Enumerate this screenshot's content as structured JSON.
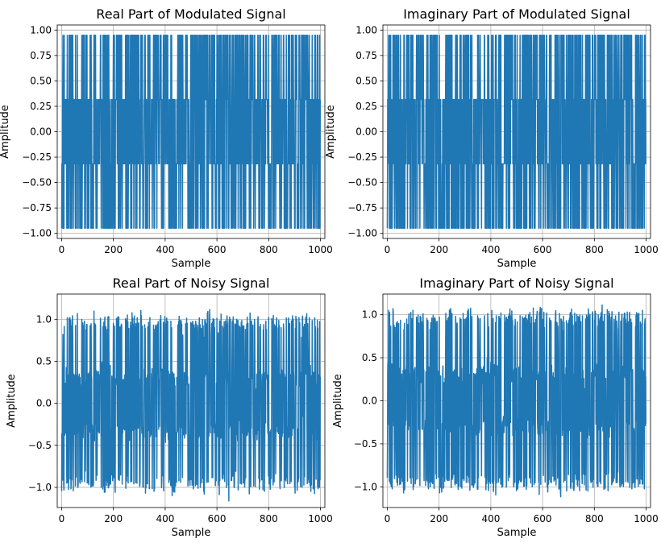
{
  "chart_data": [
    {
      "type": "line",
      "title": "Real Part of Modulated Signal",
      "xlabel": "Sample",
      "ylabel": "Amplitude",
      "xlim": [
        -17,
        1017
      ],
      "ylim": [
        -1.05,
        1.05
      ],
      "xticks": [
        0,
        200,
        400,
        600,
        800,
        1000
      ],
      "yticks": [
        -1.0,
        -0.75,
        -0.5,
        -0.25,
        0.0,
        0.25,
        0.5,
        0.75,
        1.0
      ],
      "ytick_labels": [
        "−1.00",
        "−0.75",
        "−0.50",
        "−0.25",
        "0.00",
        "0.25",
        "0.50",
        "0.75",
        "1.00"
      ],
      "grid": true,
      "color": "#1f77b4",
      "series": [
        {
          "levels": [
            -0.949,
            -0.316,
            0.316,
            0.949
          ],
          "length": 1000,
          "noise_std": 0,
          "seed": 11
        }
      ]
    },
    {
      "type": "line",
      "title": "Imaginary Part of Modulated Signal",
      "xlabel": "Sample",
      "ylabel": "Amplitude",
      "xlim": [
        -17,
        1017
      ],
      "ylim": [
        -1.05,
        1.05
      ],
      "xticks": [
        0,
        200,
        400,
        600,
        800,
        1000
      ],
      "yticks": [
        -1.0,
        -0.75,
        -0.5,
        -0.25,
        0.0,
        0.25,
        0.5,
        0.75,
        1.0
      ],
      "ytick_labels": [
        "−1.00",
        "−0.75",
        "−0.50",
        "−0.25",
        "0.00",
        "0.25",
        "0.50",
        "0.75",
        "1.00"
      ],
      "grid": true,
      "color": "#1f77b4",
      "series": [
        {
          "levels": [
            -0.949,
            -0.316,
            0.316,
            0.949
          ],
          "length": 1000,
          "noise_std": 0,
          "seed": 23
        }
      ]
    },
    {
      "type": "line",
      "title": "Real Part of Noisy Signal",
      "xlabel": "Sample",
      "ylabel": "Amplitude",
      "xlim": [
        -17,
        1017
      ],
      "ylim": [
        -1.24,
        1.3
      ],
      "xticks": [
        0,
        200,
        400,
        600,
        800,
        1000
      ],
      "yticks": [
        -1.0,
        -0.5,
        0.0,
        0.5,
        1.0
      ],
      "ytick_labels": [
        "−1.0",
        "−0.5",
        "0.0",
        "0.5",
        "1.0"
      ],
      "grid": true,
      "color": "#1f77b4",
      "series": [
        {
          "levels": [
            -0.949,
            -0.316,
            0.316,
            0.949
          ],
          "length": 1000,
          "noise_std": 0.06,
          "seed": 11
        }
      ]
    },
    {
      "type": "line",
      "title": "Imaginary Part of Noisy Signal",
      "xlabel": "Sample",
      "ylabel": "Amplitude",
      "xlim": [
        -17,
        1017
      ],
      "ylim": [
        -1.24,
        1.24
      ],
      "xticks": [
        0,
        200,
        400,
        600,
        800,
        1000
      ],
      "yticks": [
        -1.0,
        -0.5,
        0.0,
        0.5,
        1.0
      ],
      "ytick_labels": [
        "−1.0",
        "−0.5",
        "0.0",
        "0.5",
        "1.0"
      ],
      "grid": true,
      "color": "#1f77b4",
      "series": [
        {
          "levels": [
            -0.949,
            -0.316,
            0.316,
            0.949
          ],
          "length": 1000,
          "noise_std": 0.06,
          "seed": 23
        }
      ]
    }
  ]
}
